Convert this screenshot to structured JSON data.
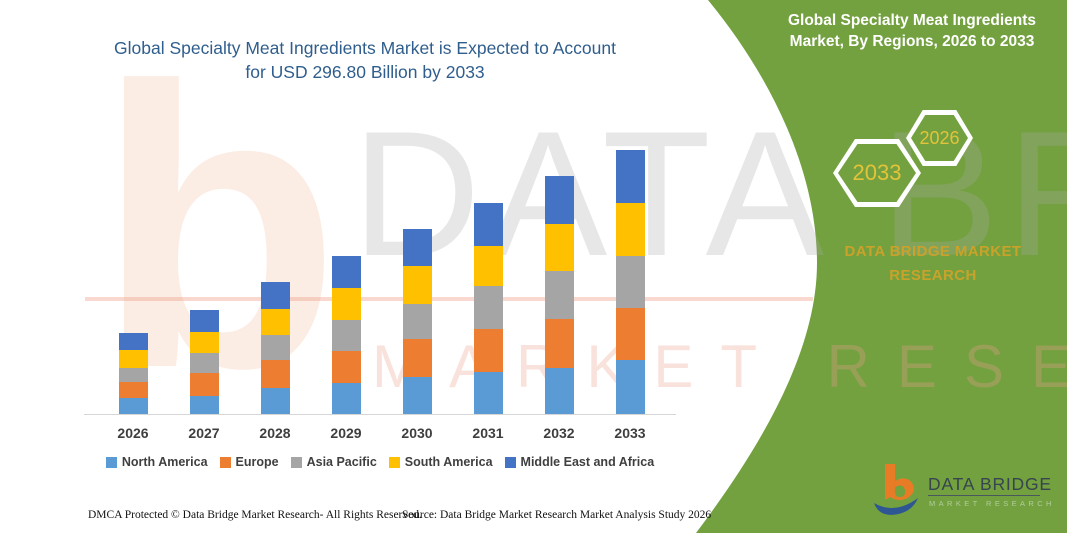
{
  "header": {
    "title": "Global Specialty Meat Ingredients Market is Expected to Account for USD 296.80 Billion by 2033"
  },
  "side_panel": {
    "title": "Global Specialty Meat Ingredients Market, By Regions, 2026 to 2033",
    "hexagon_far": "2033",
    "hexagon_near": "2026",
    "brand_caption": "DATA BRIDGE MARKET RESEARCH"
  },
  "chart_data": {
    "type": "bar",
    "stacked": true,
    "title": "Global Specialty Meat Ingredients Market is Expected to Account for USD 296.80 Billion by 2033",
    "unit": "USD Billion",
    "categories": [
      "2026",
      "2027",
      "2028",
      "2029",
      "2030",
      "2031",
      "2032",
      "2033"
    ],
    "series": [
      {
        "name": "North America",
        "color": "#5B9BD5",
        "values": [
          17.7,
          20.2,
          28.9,
          34.4,
          41.9,
          47.6,
          52.1,
          60.7
        ]
      },
      {
        "name": "Europe",
        "color": "#ED7D31",
        "values": [
          18.0,
          26.4,
          31.8,
          36.8,
          42.4,
          47.7,
          54.7,
          58.1
        ]
      },
      {
        "name": "Asia Pacific",
        "color": "#A5A5A5",
        "values": [
          16.4,
          22.5,
          28.1,
          34.9,
          39.3,
          49.0,
          54.0,
          58.8
        ]
      },
      {
        "name": "South America",
        "color": "#FFC000",
        "values": [
          19.9,
          23.3,
          28.9,
          35.2,
          43.1,
          44.6,
          52.5,
          59.3
        ]
      },
      {
        "name": "Middle East and Africa",
        "color": "#4472C4",
        "values": [
          18.8,
          24.4,
          31.0,
          36.0,
          41.6,
          48.7,
          54.3,
          59.9
        ]
      }
    ],
    "totals": [
      90.8,
      116.8,
      148.7,
      177.3,
      208.3,
      237.6,
      267.6,
      296.8
    ],
    "ylim": [
      0,
      300
    ],
    "grid": false,
    "y_axis_visible": false,
    "legend_position": "bottom"
  },
  "watermark": {
    "big_letter": "b",
    "line1": "DATA BRIDGE",
    "line2": "MARKET RESEARCH"
  },
  "footer": {
    "dmca": "DMCA Protected © Data Bridge Market Research-  All Rights Reserved.",
    "source": "Source: Data Bridge Market Research  Market Analysis Study 2026"
  },
  "logo": {
    "title": "DATA BRIDGE",
    "subtitle": "MARKET RESEARCH"
  },
  "colors": {
    "accent_green": "#73A13F",
    "title_blue": "#2F5E8D",
    "gold": "#C9A22B",
    "hex_year_yellow": "#E3C339",
    "axis_line": "#D6D6D6",
    "logo_orange": "#E87C26",
    "logo_blue": "#2E5693"
  }
}
